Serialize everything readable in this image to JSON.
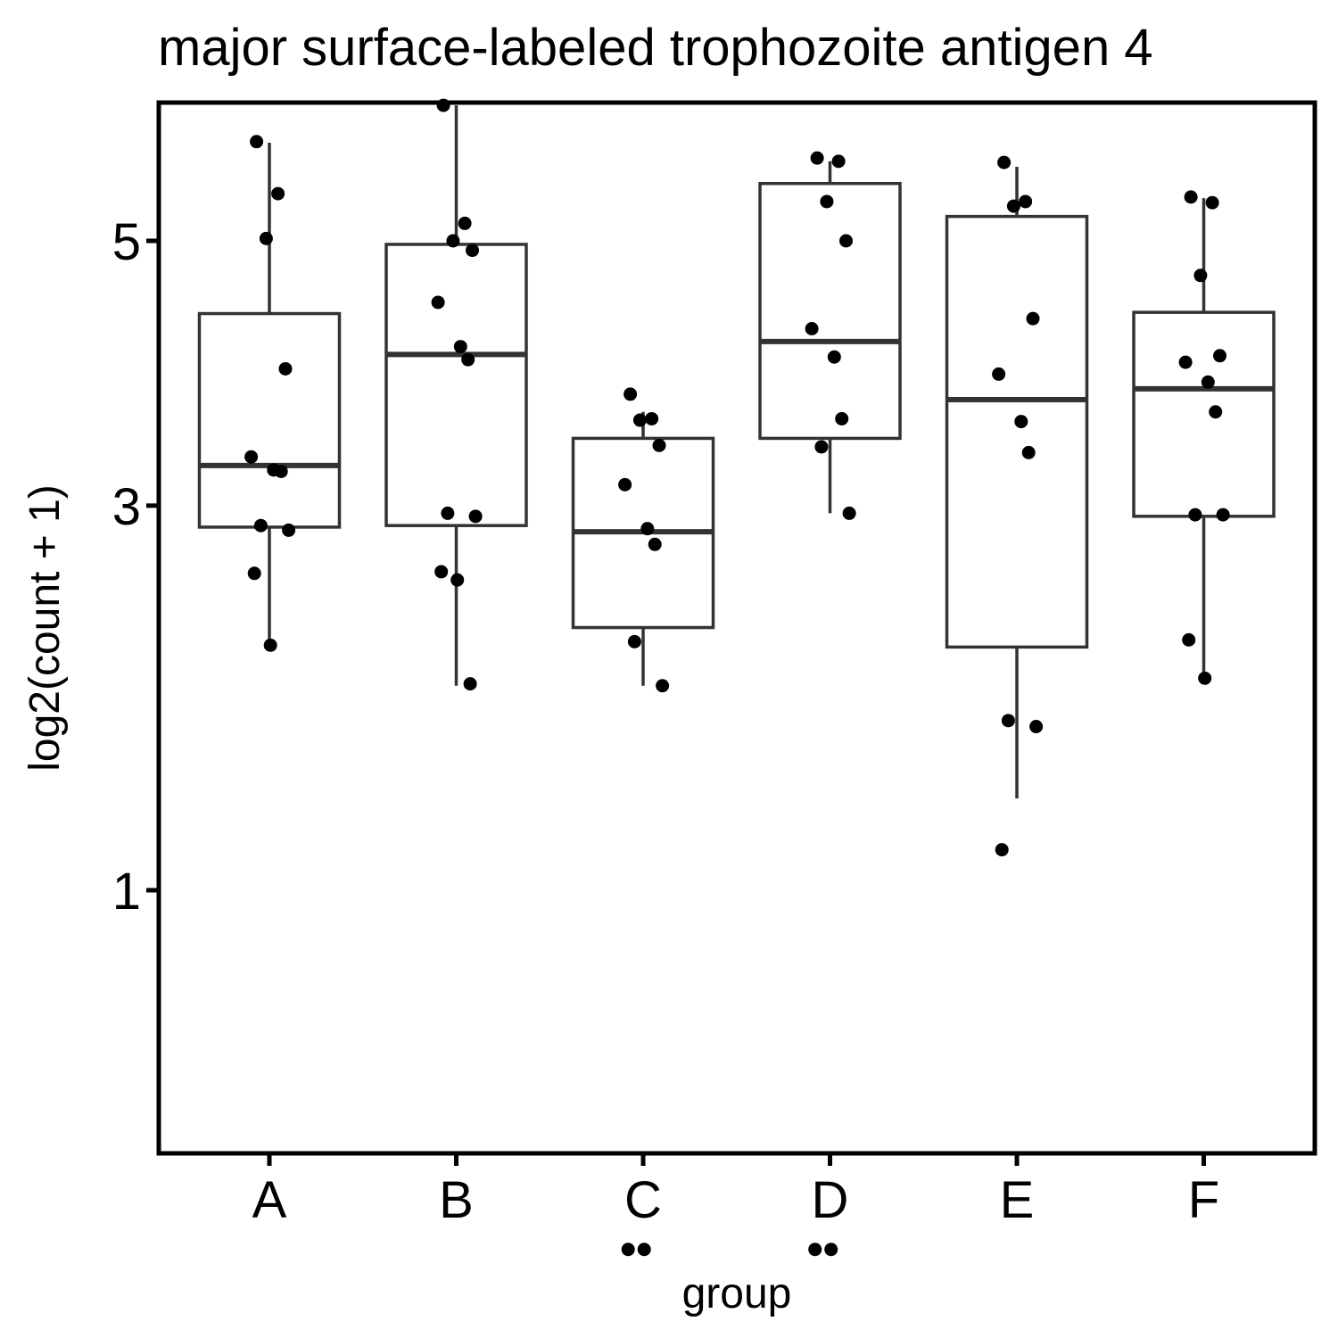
{
  "chart_data": {
    "type": "box",
    "title": "major surface-labeled trophozoite antigen 4",
    "xlabel": "group",
    "ylabel": "log2(count + 1)",
    "y_scale": "sqrt",
    "ylim": [
      0.05,
      6.43
    ],
    "yticks": [
      1,
      3,
      5
    ],
    "grid": false,
    "legend": "none",
    "categories": [
      "A",
      "B",
      "C",
      "D",
      "E",
      "F"
    ],
    "boxes": [
      {
        "group": "A",
        "whisker_low": 2.15,
        "q1": 2.86,
        "median": 3.27,
        "q3": 4.4,
        "whisker_high": 5.87
      },
      {
        "group": "B",
        "whisker_low": 1.93,
        "q1": 2.87,
        "median": 4.08,
        "q3": 4.97,
        "whisker_high": 6.22
      },
      {
        "group": "C",
        "whisker_low": 1.93,
        "q1": 2.25,
        "median": 2.83,
        "q3": 3.46,
        "whisker_high": 3.65
      },
      {
        "group": "D",
        "whisker_low": 2.95,
        "q1": 3.46,
        "median": 4.18,
        "q3": 5.5,
        "whisker_high": 5.7
      },
      {
        "group": "E",
        "whisker_low": 1.38,
        "q1": 2.14,
        "median": 3.74,
        "q3": 5.21,
        "whisker_high": 5.65
      },
      {
        "group": "F",
        "whisker_low": 1.94,
        "q1": 2.93,
        "median": 3.82,
        "q3": 4.41,
        "whisker_high": 5.37
      }
    ],
    "points": [
      {
        "group": "A",
        "y": [
          5.88,
          5.41,
          5.02,
          3.97,
          3.33,
          3.24,
          3.23,
          2.87,
          2.84,
          2.57,
          2.15
        ]
      },
      {
        "group": "B",
        "y": [
          6.22,
          5.15,
          5.0,
          4.92,
          4.49,
          4.14,
          4.04,
          2.95,
          2.93,
          2.58,
          2.53,
          1.94
        ]
      },
      {
        "group": "C",
        "y": [
          3.78,
          3.6,
          3.59,
          3.41,
          3.14,
          2.85,
          2.75,
          2.17,
          1.93,
          0.1,
          0.1
        ]
      },
      {
        "group": "D",
        "y": [
          5.73,
          5.7,
          5.34,
          5.0,
          4.28,
          4.06,
          3.6,
          3.4,
          2.95,
          0.1,
          0.1
        ]
      },
      {
        "group": "E",
        "y": [
          5.69,
          5.34,
          5.3,
          4.36,
          3.93,
          3.58,
          3.36,
          1.75,
          1.72,
          1.16
        ]
      },
      {
        "group": "F",
        "y": [
          5.38,
          5.33,
          4.71,
          4.07,
          4.02,
          3.87,
          3.65,
          2.94,
          2.94,
          2.18,
          1.97
        ]
      }
    ]
  }
}
